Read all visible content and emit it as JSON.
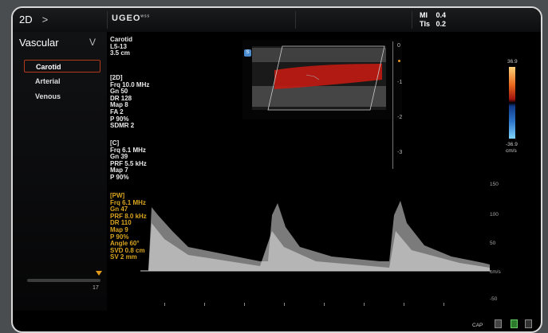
{
  "topbar": {
    "mode_label": "2D",
    "mode_chevron": ">",
    "brand": "UGEO",
    "brand_sup": "wss",
    "mi_label": "MI",
    "mi_value": "0.4",
    "tis_label": "TIs",
    "tis_value": "0.2"
  },
  "sidebar": {
    "heading": "Vascular",
    "chevron": "V",
    "items": [
      {
        "label": "Carotid",
        "active": true
      },
      {
        "label": "Arterial",
        "active": false
      },
      {
        "label": "Venous",
        "active": false
      }
    ],
    "slider_value": "17",
    "slider_level": 1.0
  },
  "header_info": {
    "l1": "Carotid",
    "l2": "L5-13",
    "l3": "3.5 cm"
  },
  "params_2d": {
    "title": "[2D]",
    "lines": [
      "Frq 10.0 MHz",
      "Gn  50",
      "DR  128",
      "Map 8",
      "FA  2",
      "P    90%",
      "SDMR 2"
    ]
  },
  "params_c": {
    "title": "[C]",
    "lines": [
      "Frq 6.1 MHz",
      "Gn  39",
      "PRF 5.5 kHz",
      "Map 7",
      "P    90%"
    ]
  },
  "params_pw": {
    "title": "[PW]",
    "lines": [
      "Frq 6.1 MHz",
      "Gn  47",
      "PRF 8.0 kHz",
      "DR  110",
      "Map 9",
      "P    90%",
      "Angle 60°",
      "SVD 0.8 cm",
      "SV  2 mm"
    ]
  },
  "depth_labels": [
    "0",
    "-1",
    "-2",
    "-3"
  ],
  "color_scale": {
    "top": "36.9",
    "bottom": "-36.9",
    "unit": "cm/s"
  },
  "pw_scale": {
    "ticks": [
      "150",
      "100",
      "50"
    ],
    "unit": "cm/s",
    "neg": "-50"
  },
  "bottom_bar": {
    "cap": "CAP"
  },
  "colors": {
    "accent": "#e39a1a",
    "pw_text": "#d9a520",
    "active_border": "#b23a1c"
  }
}
